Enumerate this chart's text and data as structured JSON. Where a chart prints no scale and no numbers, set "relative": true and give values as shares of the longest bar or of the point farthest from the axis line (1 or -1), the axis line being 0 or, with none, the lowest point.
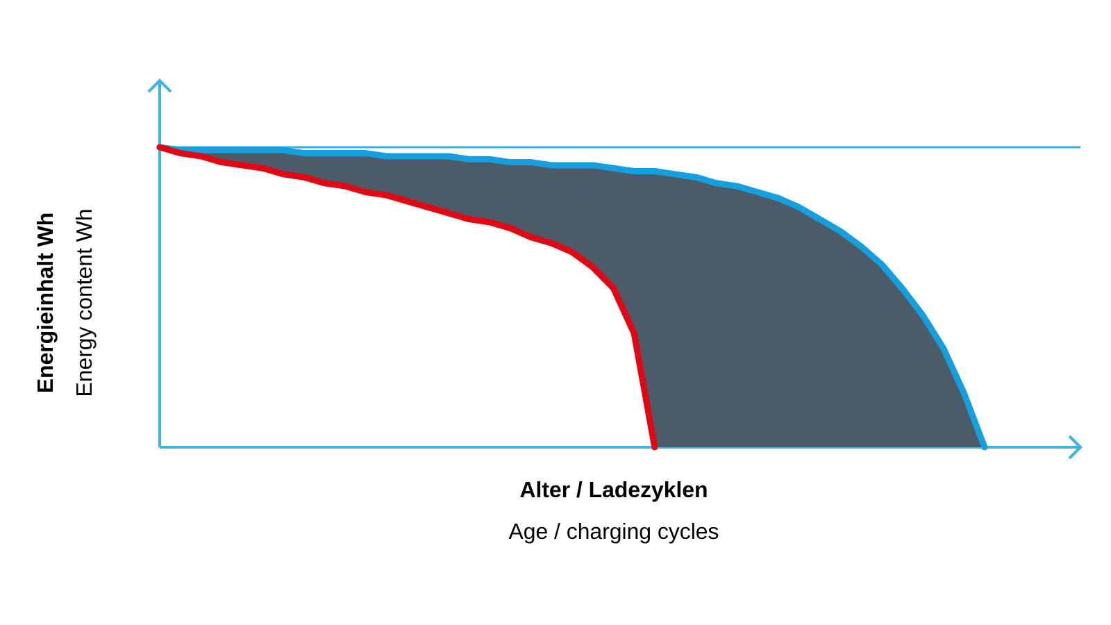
{
  "chart_data": {
    "type": "line",
    "relative": true,
    "marker": "none",
    "line_style": "solid",
    "xlabel": [
      "Alter / Ladezyklen",
      "Age / charging cycles"
    ],
    "ylabel": [
      "Energieinhalt Wh",
      "Energy content Wh"
    ],
    "categories": [
      null,
      null,
      null,
      null,
      null,
      null,
      null,
      null,
      null,
      null,
      null,
      null,
      null,
      null,
      null,
      null,
      null,
      null,
      null,
      null,
      null,
      null,
      null,
      null,
      null,
      null,
      null,
      null,
      null,
      null,
      null,
      null,
      null,
      null,
      null,
      null,
      null,
      null,
      null,
      null,
      null
    ],
    "series": [
      {
        "color": "#14a0de",
        "values": [
          1.0,
          0.99,
          0.99,
          0.99,
          0.99,
          0.99,
          0.99,
          0.98,
          0.98,
          0.98,
          0.98,
          0.97,
          0.97,
          0.97,
          0.97,
          0.96,
          0.96,
          0.95,
          0.95,
          0.94,
          0.94,
          0.94,
          0.93,
          0.92,
          0.92,
          0.91,
          0.9,
          0.88,
          0.87,
          0.85,
          0.83,
          0.8,
          0.76,
          0.72,
          0.67,
          0.61,
          0.53,
          0.44,
          0.33,
          0.18,
          0
        ],
        "upper": [
          1.0,
          0.99,
          0.99,
          0.99,
          0.99,
          0.99,
          0.99,
          0.98,
          0.98,
          0.98,
          0.98,
          0.97,
          0.97,
          0.97,
          0.97,
          0.96,
          0.96,
          0.95,
          0.95,
          0.94,
          0.94,
          0.94,
          0.93,
          0.92,
          0.92,
          0.91,
          0.9,
          0.88,
          0.87,
          0.85,
          0.83,
          0.8,
          0.76,
          0.72,
          0.67,
          0.61,
          0.53,
          0.44,
          0.33,
          0.18,
          0
        ],
        "lower": [
          1.0,
          0.98,
          0.97,
          0.95,
          0.94,
          0.93,
          0.91,
          0.9,
          0.88,
          0.87,
          0.85,
          0.84,
          0.82,
          0.8,
          0.78,
          0.76,
          0.75,
          0.73,
          0.7,
          0.68,
          0.65,
          0.6,
          0.53,
          0.38,
          0,
          0,
          0,
          0,
          0,
          0,
          0,
          0,
          0,
          0,
          0,
          0,
          0,
          0,
          0,
          0,
          0
        ]
      },
      {
        "color": "#e30613",
        "values": [
          1.0,
          0.98,
          0.97,
          0.95,
          0.94,
          0.93,
          0.91,
          0.9,
          0.88,
          0.87,
          0.85,
          0.84,
          0.82,
          0.8,
          0.78,
          0.76,
          0.75,
          0.73,
          0.7,
          0.68,
          0.65,
          0.6,
          0.53,
          0.38,
          0,
          null,
          null,
          null,
          null,
          null,
          null,
          null,
          null,
          null,
          null,
          null,
          null,
          null,
          null,
          null,
          null
        ]
      }
    ],
    "ref_lines": [
      {
        "axis": "y",
        "value": 1.0,
        "color": "#36aee3"
      }
    ]
  }
}
